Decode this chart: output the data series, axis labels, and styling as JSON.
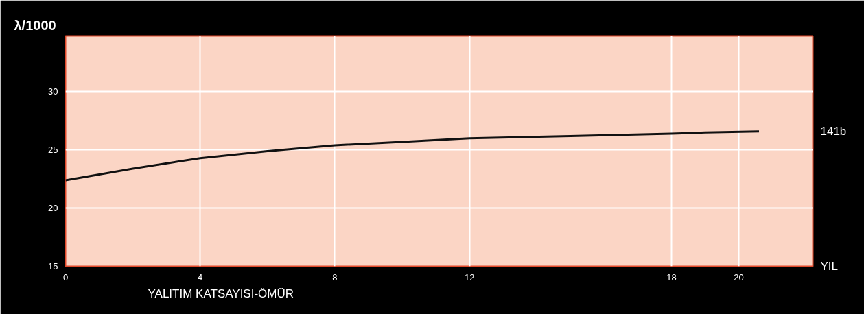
{
  "chart_data": {
    "type": "line",
    "title": "YALITIM KATSAYISI-ÖMÜR",
    "xlabel": "YIL",
    "ylabel": "λ/1000",
    "x": [
      0,
      1,
      2,
      4,
      6,
      8,
      10,
      12,
      15,
      18,
      19,
      20.6
    ],
    "series": [
      {
        "name": "141b",
        "color": "#111111",
        "values": [
          22.4,
          22.9,
          23.4,
          24.3,
          24.9,
          25.4,
          25.7,
          26.0,
          26.2,
          26.4,
          26.5,
          26.6
        ]
      }
    ],
    "xlim": [
      0,
      22.2
    ],
    "ylim": [
      15,
      34.8
    ],
    "xticks": [
      0,
      4,
      8,
      12,
      18,
      20
    ],
    "yticks": [
      15,
      20,
      25,
      30
    ],
    "grid": true,
    "line_style": "solid"
  }
}
